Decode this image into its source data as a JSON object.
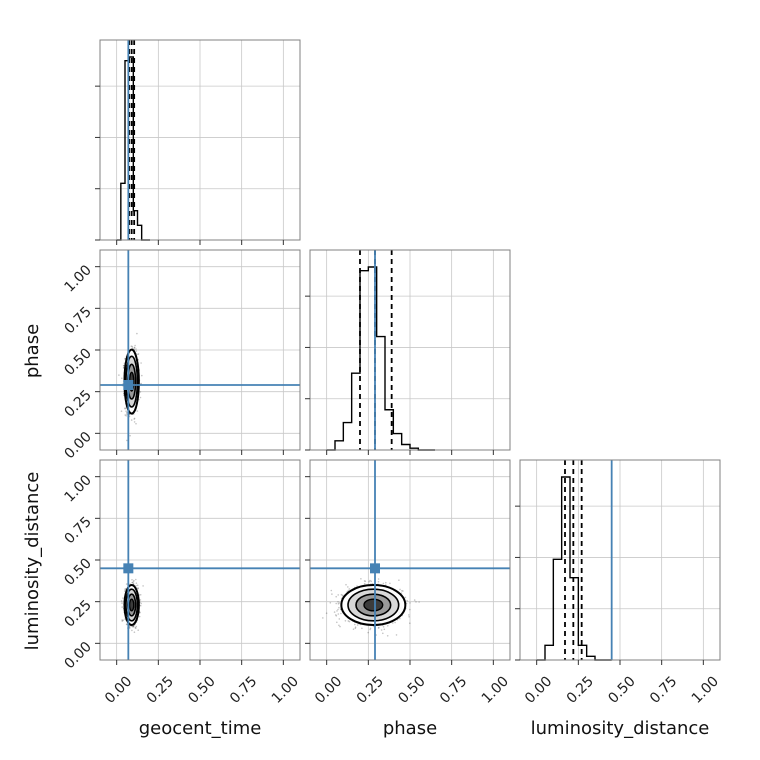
{
  "chart_data": {
    "type": "corner",
    "parameters": [
      "geocent_time",
      "phase",
      "luminosity_distance"
    ],
    "axis_range": [
      -0.1,
      1.1
    ],
    "ticks": [
      0.0,
      0.25,
      0.5,
      0.75,
      1.0
    ],
    "tick_labels": [
      "0.00",
      "0.25",
      "0.50",
      "0.75",
      "1.00"
    ],
    "grid": true,
    "truths": [
      0.07,
      0.29,
      0.45
    ],
    "truth_color": "#4682b4",
    "histograms": [
      {
        "param": "geocent_time",
        "bin_edges": [
          0.0,
          0.025,
          0.05,
          0.075,
          0.1,
          0.125,
          0.15,
          0.175,
          0.2
        ],
        "counts": [
          0,
          0.31,
          0.98,
          1.0,
          0.16,
          0.08,
          0,
          0
        ],
        "quantiles": [
          0.075,
          0.09,
          0.105
        ]
      },
      {
        "param": "phase",
        "bin_edges": [
          0.0,
          0.05,
          0.1,
          0.15,
          0.2,
          0.25,
          0.3,
          0.35,
          0.4,
          0.45,
          0.5,
          0.55,
          0.6,
          0.65
        ],
        "counts": [
          0,
          0.05,
          0.15,
          0.42,
          0.98,
          1.0,
          0.62,
          0.22,
          0.09,
          0.03,
          0.01,
          0,
          0
        ],
        "quantiles": [
          0.2,
          0.29,
          0.39
        ]
      },
      {
        "param": "luminosity_distance",
        "bin_edges": [
          0.0,
          0.05,
          0.1,
          0.15,
          0.2,
          0.25,
          0.3,
          0.35,
          0.4,
          0.45
        ],
        "counts": [
          0,
          0.08,
          0.55,
          1.0,
          0.45,
          0.08,
          0.02,
          0,
          0
        ],
        "quantiles": [
          0.17,
          0.22,
          0.27
        ]
      }
    ],
    "contours_2d": [
      {
        "x": "geocent_time",
        "y": "phase",
        "center": [
          0.09,
          0.31
        ],
        "sigma": [
          0.018,
          0.08
        ]
      },
      {
        "x": "geocent_time",
        "y": "luminosity_distance",
        "center": [
          0.09,
          0.23
        ],
        "sigma": [
          0.018,
          0.05
        ]
      },
      {
        "x": "phase",
        "y": "luminosity_distance",
        "center": [
          0.28,
          0.23
        ],
        "sigma": [
          0.08,
          0.05
        ]
      }
    ]
  }
}
